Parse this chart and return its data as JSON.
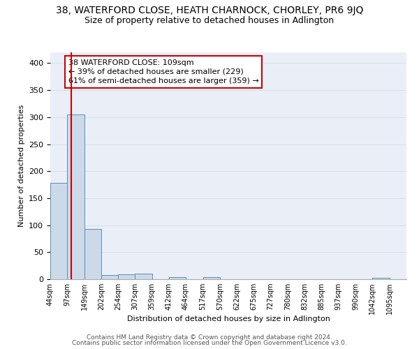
{
  "title": "38, WATERFORD CLOSE, HEATH CHARNOCK, CHORLEY, PR6 9JQ",
  "subtitle": "Size of property relative to detached houses in Adlington",
  "xlabel": "Distribution of detached houses by size in Adlington",
  "ylabel": "Number of detached properties",
  "bar_labels": [
    "44sqm",
    "97sqm",
    "149sqm",
    "202sqm",
    "254sqm",
    "307sqm",
    "359sqm",
    "412sqm",
    "464sqm",
    "517sqm",
    "570sqm",
    "622sqm",
    "675sqm",
    "727sqm",
    "780sqm",
    "832sqm",
    "885sqm",
    "937sqm",
    "990sqm",
    "1042sqm",
    "1095sqm"
  ],
  "bin_edges": [
    44,
    97,
    149,
    202,
    254,
    307,
    359,
    412,
    464,
    517,
    570,
    622,
    675,
    727,
    780,
    832,
    885,
    937,
    990,
    1042,
    1095,
    1148
  ],
  "bar_heights": [
    178,
    305,
    93,
    8,
    9,
    10,
    0,
    4,
    0,
    4,
    0,
    0,
    0,
    0,
    0,
    0,
    0,
    0,
    0,
    3,
    0
  ],
  "bar_color": "#ccd9e8",
  "bar_edge_color": "#5b8db8",
  "property_sqm": 109,
  "property_line_color": "#cc0000",
  "annotation_line1": "38 WATERFORD CLOSE: 109sqm",
  "annotation_line2": "← 39% of detached houses are smaller (229)",
  "annotation_line3": "61% of semi-detached houses are larger (359) →",
  "annotation_box_color": "#ffffff",
  "annotation_box_edge_color": "#cc0000",
  "ylim": [
    0,
    420
  ],
  "yticks": [
    0,
    50,
    100,
    150,
    200,
    250,
    300,
    350,
    400
  ],
  "footer_line1": "Contains HM Land Registry data © Crown copyright and database right 2024.",
  "footer_line2": "Contains public sector information licensed under the Open Government Licence v3.0.",
  "background_color": "#eaeff7",
  "grid_color": "#d8dfe8",
  "title_fontsize": 10,
  "subtitle_fontsize": 9,
  "ylabel_fontsize": 8,
  "xlabel_fontsize": 8,
  "tick_fontsize": 7,
  "annotation_fontsize": 8,
  "footer_fontsize": 6.5
}
